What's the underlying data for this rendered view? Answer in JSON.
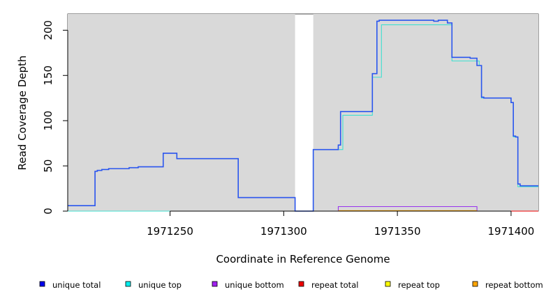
{
  "chart_data": {
    "type": "line",
    "title": "",
    "xlabel": "Coordinate in Reference Genome",
    "ylabel": "Read Coverage Depth",
    "xlim": [
      1971205,
      1971412
    ],
    "ylim": [
      0,
      218
    ],
    "x_ticks": [
      1971250,
      1971300,
      1971350,
      1971400
    ],
    "y_ticks": [
      0,
      50,
      100,
      150,
      200
    ],
    "background_regions": [
      {
        "x": [
          1971205,
          1971305
        ]
      },
      {
        "x": [
          1971313,
          1971412
        ]
      }
    ],
    "series": [
      {
        "name": "unique top",
        "color": "#40e0d0",
        "x": [
          1971205,
          1971313,
          1971313,
          1971326,
          1971326,
          1971339,
          1971339,
          1971343,
          1971343,
          1971374,
          1971374,
          1971386,
          1971386,
          1971387,
          1971387,
          1971400,
          1971400,
          1971401,
          1971401,
          1971403,
          1971403,
          1971412
        ],
        "y": [
          0,
          0,
          68,
          68,
          106,
          106,
          148,
          148,
          206,
          206,
          166,
          166,
          161,
          161,
          125,
          125,
          120,
          120,
          82,
          82,
          27,
          27
        ]
      },
      {
        "name": "unique bottom",
        "color": "#9933ee",
        "x": [
          1971205,
          1971217,
          1971217,
          1971218,
          1971218,
          1971220,
          1971220,
          1971223,
          1971223,
          1971232,
          1971232,
          1971236,
          1971236,
          1971247,
          1971247,
          1971253,
          1971253,
          1971280,
          1971280,
          1971305,
          1971305,
          1971324,
          1971324,
          1971385,
          1971385,
          1971412
        ],
        "y": [
          6,
          6,
          44,
          44,
          45,
          45,
          46,
          46,
          47,
          47,
          48,
          48,
          49,
          49,
          64,
          64,
          58,
          58,
          15,
          15,
          0,
          0,
          5,
          5,
          0,
          0
        ]
      },
      {
        "name": "unique total",
        "color": "#2a56ee",
        "x": [
          1971205,
          1971217,
          1971217,
          1971218,
          1971218,
          1971220,
          1971220,
          1971223,
          1971223,
          1971232,
          1971232,
          1971236,
          1971236,
          1971247,
          1971247,
          1971253,
          1971253,
          1971280,
          1971280,
          1971305,
          1971305,
          1971313,
          1971313,
          1971324,
          1971324,
          1971325,
          1971325,
          1971339,
          1971339,
          1971341,
          1971341,
          1971342,
          1971342,
          1971366,
          1971366,
          1971368,
          1971368,
          1971372,
          1971372,
          1971374,
          1971374,
          1971382,
          1971382,
          1971385,
          1971385,
          1971387,
          1971387,
          1971388,
          1971388,
          1971400,
          1971400,
          1971401,
          1971401,
          1971402,
          1971402,
          1971403,
          1971403,
          1971404,
          1971404,
          1971412
        ],
        "y": [
          6,
          6,
          44,
          44,
          45,
          45,
          46,
          46,
          47,
          47,
          48,
          48,
          49,
          49,
          64,
          64,
          58,
          58,
          15,
          15,
          0,
          0,
          68,
          68,
          73,
          73,
          110,
          110,
          152,
          152,
          210,
          210,
          211,
          211,
          210,
          210,
          211,
          211,
          208,
          208,
          170,
          170,
          169,
          169,
          161,
          161,
          126,
          126,
          125,
          125,
          120,
          120,
          83,
          83,
          82,
          82,
          30,
          30,
          28,
          28
        ]
      },
      {
        "name": "repeat total",
        "color": "#ee0000",
        "x": [
          1971385,
          1971412
        ],
        "y": [
          0,
          0
        ]
      },
      {
        "name": "repeat top",
        "color": "#ffff00",
        "x": [],
        "y": []
      },
      {
        "name": "repeat bottom",
        "color": "#ffa500",
        "x": [
          1971324,
          1971385
        ],
        "y": [
          0.5,
          0.5
        ]
      }
    ],
    "baseline_segment": {
      "color": "#7fe07f",
      "x": [
        1971205,
        1971305
      ],
      "y": [
        0,
        0
      ]
    },
    "legend": {
      "position": "bottom",
      "items": [
        {
          "label": "unique total",
          "color": "#0000ee"
        },
        {
          "label": "unique top",
          "color": "#00eeee"
        },
        {
          "label": "unique bottom",
          "color": "#a020f0"
        },
        {
          "label": "repeat total",
          "color": "#ee0000"
        },
        {
          "label": "repeat top",
          "color": "#ffff00"
        },
        {
          "label": "repeat bottom",
          "color": "#ffa500"
        }
      ]
    },
    "plot_background": "#d9d9d9"
  }
}
